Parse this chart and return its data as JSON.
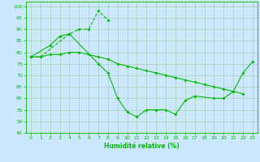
{
  "line1_x": [
    0,
    1,
    4,
    5,
    6,
    7,
    8
  ],
  "line1_y": [
    78,
    78,
    88,
    90,
    90,
    98,
    94
  ],
  "line2_x": [
    0,
    2,
    3,
    4,
    7,
    8,
    9,
    10,
    11,
    12,
    13,
    14,
    15,
    16,
    17,
    19,
    20,
    21,
    22,
    23
  ],
  "line2_y": [
    78,
    83,
    87,
    88,
    75,
    71,
    60,
    54,
    52,
    55,
    55,
    55,
    53,
    59,
    61,
    60,
    60,
    63,
    71,
    76
  ],
  "line3_x": [
    0,
    1,
    2,
    3,
    4,
    5,
    6,
    7,
    8,
    9,
    10,
    11,
    12,
    13,
    14,
    15,
    16,
    17,
    18,
    19,
    20,
    21,
    22
  ],
  "line3_y": [
    78,
    78,
    79,
    79,
    80,
    80,
    79,
    78,
    77,
    75,
    74,
    73,
    72,
    71,
    70,
    69,
    68,
    67,
    66,
    65,
    64,
    63,
    62
  ],
  "xlabel": "Humidité relative (%)",
  "ylim": [
    45,
    102
  ],
  "xlim": [
    -0.5,
    23.5
  ],
  "yticks": [
    45,
    50,
    55,
    60,
    65,
    70,
    75,
    80,
    85,
    90,
    95,
    100
  ],
  "xticks": [
    0,
    1,
    2,
    3,
    4,
    5,
    6,
    7,
    8,
    9,
    10,
    11,
    12,
    13,
    14,
    15,
    16,
    17,
    18,
    19,
    20,
    21,
    22,
    23
  ],
  "line_color": "#00bb00",
  "bg_color": "#cce8ff",
  "grid_color": "#99cc99",
  "marker_size": 2.0,
  "line_width": 0.8
}
